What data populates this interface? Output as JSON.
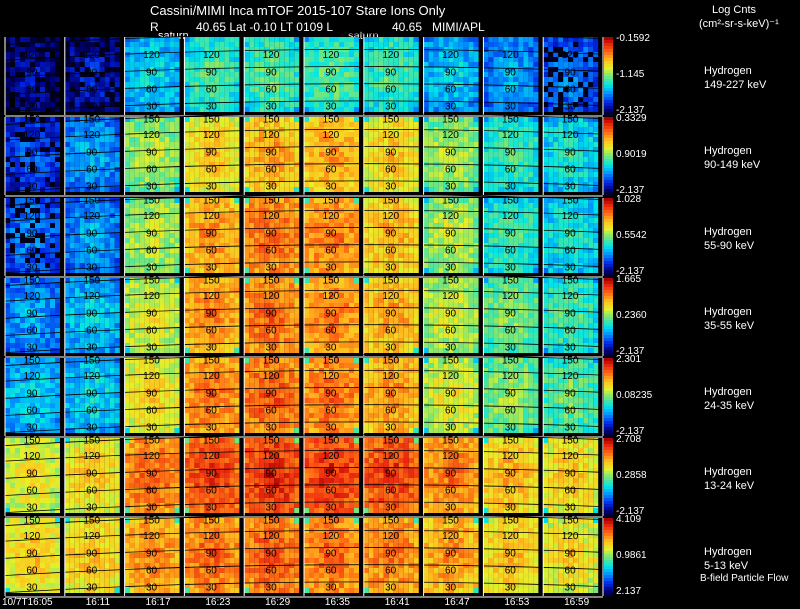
{
  "header": {
    "title": "Cassini/MIMI Inca mTOF  2015-107   Stare   Ions Only",
    "subline_r": "R",
    "subline_mid": "40.65 Lat -0.10 LT 0109 L",
    "subline_l": "40.65",
    "subline_credit": "MIMI/APL",
    "saturn_label": "saturn",
    "units_line1": "Log Cnts",
    "units_line2": "(cm²-sr-s-keV)⁻¹"
  },
  "footer": {
    "flow_label": "B-field Particle Flow"
  },
  "chart_data": {
    "type": "heatmap",
    "title": "Cassini/MIMI Inca mTOF 2015-107 Stare Ions Only",
    "x_ticks": [
      "10/7T16:05",
      "16:11",
      "16:17",
      "16:23",
      "16:29",
      "16:35",
      "16:41",
      "16:47",
      "16:53",
      "16:59"
    ],
    "contour_labels": [
      "150",
      "120",
      "90",
      "60",
      "30"
    ],
    "bands": [
      {
        "species": "Hydrogen",
        "energy": "149-227 keV",
        "cb_max": "-0.1592",
        "cb_mid": "-1.145",
        "cb_min": "-2.137",
        "intensity": [
          0.15,
          0.18,
          0.42,
          0.5,
          0.52,
          0.52,
          0.5,
          0.4,
          0.35,
          0.3
        ]
      },
      {
        "species": "Hydrogen",
        "energy": "90-149 keV",
        "cb_max": "0.3329",
        "cb_mid": "0.9019",
        "cb_min": "-2.137",
        "intensity": [
          0.25,
          0.35,
          0.6,
          0.72,
          0.78,
          0.78,
          0.72,
          0.6,
          0.5,
          0.45
        ]
      },
      {
        "species": "Hydrogen",
        "energy": "55-90 keV",
        "cb_max": "1.028",
        "cb_mid": "0.5542",
        "cb_min": "-2.137",
        "intensity": [
          0.3,
          0.35,
          0.62,
          0.8,
          0.86,
          0.84,
          0.76,
          0.62,
          0.5,
          0.45
        ]
      },
      {
        "species": "Hydrogen",
        "energy": "35-55 keV",
        "cb_max": "1.665",
        "cb_mid": "0.2360",
        "cb_min": "-2.137",
        "intensity": [
          0.35,
          0.4,
          0.66,
          0.82,
          0.86,
          0.84,
          0.78,
          0.64,
          0.56,
          0.5
        ]
      },
      {
        "species": "Hydrogen",
        "energy": "24-35 keV",
        "cb_max": "2.301",
        "cb_mid": "0.08235",
        "cb_min": "-2.137",
        "intensity": [
          0.4,
          0.42,
          0.7,
          0.84,
          0.88,
          0.86,
          0.8,
          0.66,
          0.58,
          0.54
        ]
      },
      {
        "species": "Hydrogen",
        "energy": "13-24 keV",
        "cb_max": "2.708",
        "cb_mid": "0.2858",
        "cb_min": "-2.137",
        "intensity": [
          0.68,
          0.72,
          0.86,
          0.92,
          0.95,
          0.94,
          0.92,
          0.84,
          0.76,
          0.72
        ]
      },
      {
        "species": "Hydrogen",
        "energy": "5-13 keV",
        "cb_max": "4.109",
        "cb_mid": "0.9861",
        "cb_min": "2.137",
        "intensity": [
          0.72,
          0.74,
          0.82,
          0.86,
          0.88,
          0.86,
          0.84,
          0.8,
          0.74,
          0.7
        ]
      }
    ]
  }
}
